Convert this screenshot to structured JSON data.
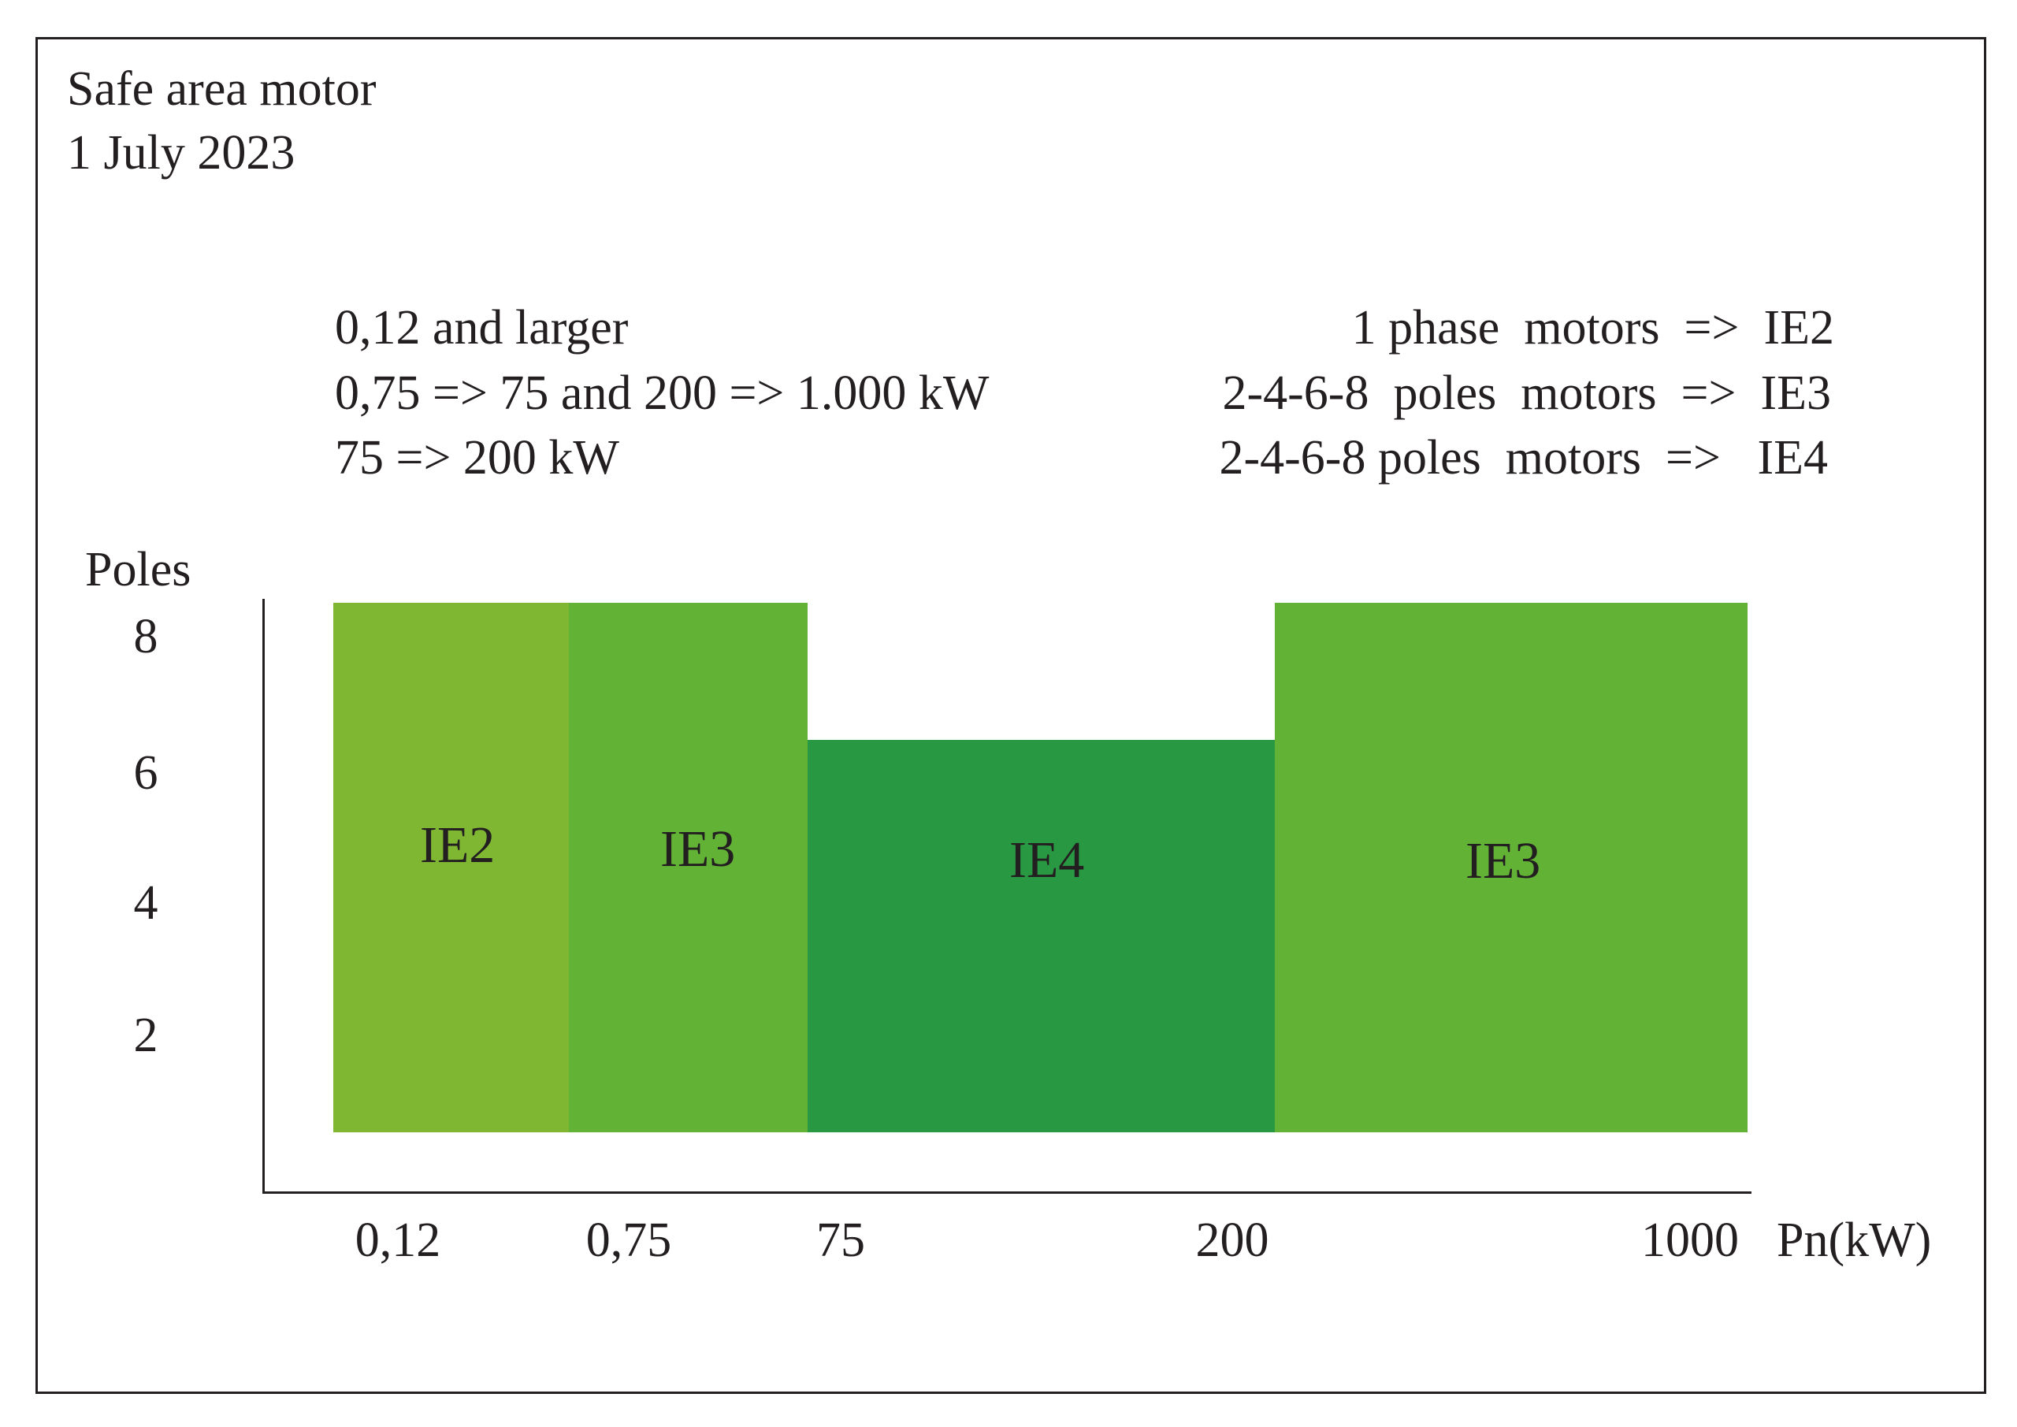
{
  "header": {
    "title": "Safe area motor",
    "date": "1 July 2023"
  },
  "legend": {
    "rows": [
      {
        "range": "0,12 and larger",
        "rule": "1 phase  motors  =>  IE2"
      },
      {
        "range": "0,75 => 75 and 200 => 1.000 kW",
        "rule": "2-4-6-8  poles  motors  =>  IE3"
      },
      {
        "range": "75 => 200 kW",
        "rule": "2-4-6-8 poles  motors  =>   IE4"
      }
    ]
  },
  "chart": {
    "y_axis_label": "Poles",
    "y_ticks": [
      "8",
      "6",
      "4",
      "2"
    ],
    "x_ticks": [
      "0,12",
      "0,75",
      "75",
      "200",
      "1000"
    ],
    "x_axis_label": "Pn(kW)",
    "zones": [
      {
        "label": "IE2",
        "color": "#7fb733",
        "x_from": "0,12",
        "x_to": "0,75",
        "poles_max": "8"
      },
      {
        "label": "IE3",
        "color": "#62b236",
        "x_from": "0,75",
        "x_to": "75",
        "poles_max": "8"
      },
      {
        "label": "IE4",
        "color": "#299842",
        "x_from": "75",
        "x_to": "200",
        "poles_max": "6"
      },
      {
        "label": "IE3",
        "color": "#62b236",
        "x_from": "200",
        "x_to": "1000",
        "poles_max": "8"
      }
    ]
  }
}
